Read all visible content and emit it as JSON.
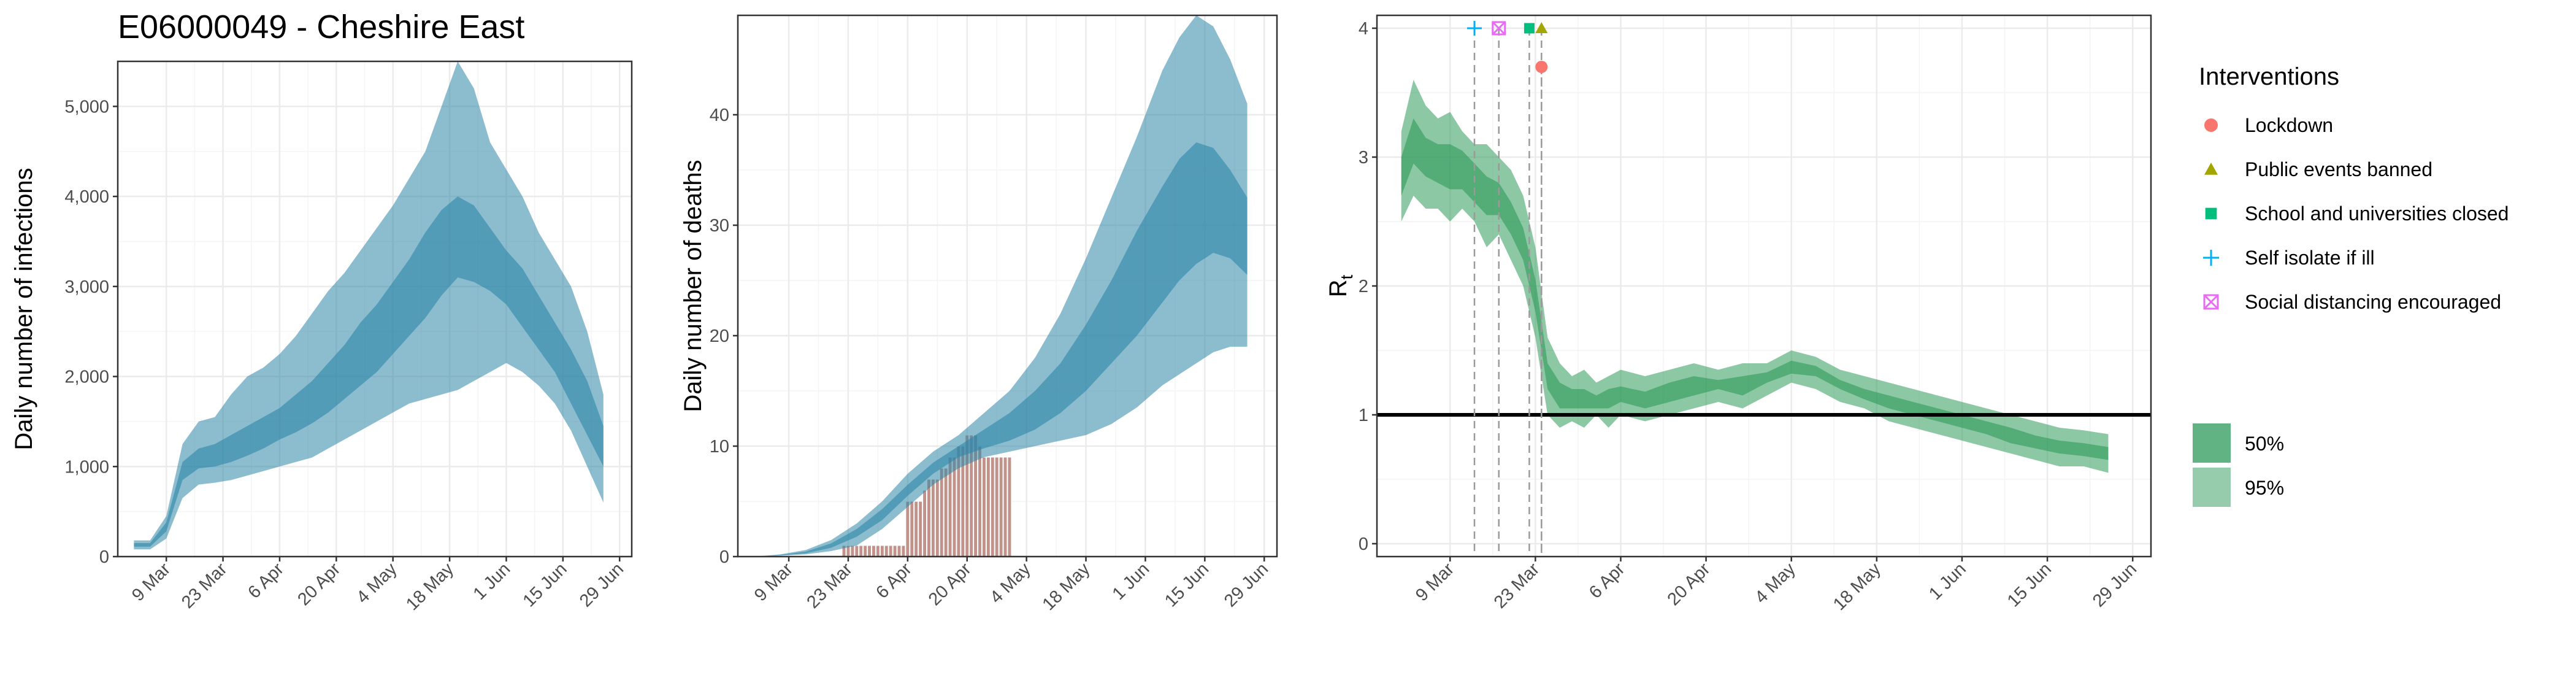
{
  "page": {
    "title": "E06000049 - Cheshire East"
  },
  "colors": {
    "infection_fill": "#2d86a8",
    "deaths_bar": "#c0928a",
    "rt_fill": "#2e9a5a",
    "lockdown": "#f8766d",
    "public_events": "#a3a500",
    "schools": "#00bf7d",
    "self_isolate": "#00b0f6",
    "social_distancing": "#e76bf3",
    "grid": "#ebebeb"
  },
  "chart_data": [
    {
      "id": "infections",
      "type": "area",
      "xlabel": "",
      "ylabel": "Daily number of infections",
      "x_tick_labels": [
        "9 Mar",
        "23 Mar",
        "6 Apr",
        "20 Apr",
        "4 May",
        "18 May",
        "1 Jun",
        "15 Jun",
        "29 Jun"
      ],
      "x_ticks_day": [
        8,
        22,
        36,
        50,
        64,
        78,
        92,
        106,
        120
      ],
      "xlim_day": [
        -4,
        123
      ],
      "y_tick_labels": [
        "0",
        "1,000",
        "2,000",
        "3,000",
        "4,000",
        "5,000"
      ],
      "y_ticks": [
        0,
        1000,
        2000,
        3000,
        4000,
        5000
      ],
      "ylim": [
        0,
        5500
      ],
      "series": [
        {
          "label": "95%",
          "x_day": [
            0,
            4,
            8,
            12,
            16,
            20,
            24,
            28,
            32,
            36,
            40,
            44,
            48,
            52,
            56,
            60,
            64,
            68,
            72,
            76,
            80,
            84,
            88,
            92,
            96,
            100,
            104,
            108,
            112,
            116
          ],
          "lower": [
            80,
            80,
            200,
            650,
            800,
            820,
            850,
            900,
            950,
            1000,
            1050,
            1100,
            1200,
            1300,
            1400,
            1500,
            1600,
            1700,
            1750,
            1800,
            1850,
            1950,
            2050,
            2150,
            2050,
            1900,
            1700,
            1400,
            1000,
            600
          ],
          "upper": [
            180,
            180,
            450,
            1250,
            1500,
            1550,
            1800,
            2000,
            2100,
            2250,
            2450,
            2700,
            2950,
            3150,
            3400,
            3650,
            3900,
            4200,
            4500,
            5000,
            5500,
            5200,
            4600,
            4300,
            4000,
            3600,
            3300,
            3000,
            2500,
            1800
          ]
        },
        {
          "label": "50%",
          "x_day": [
            0,
            4,
            8,
            12,
            16,
            20,
            24,
            28,
            32,
            36,
            40,
            44,
            48,
            52,
            56,
            60,
            64,
            68,
            72,
            76,
            80,
            84,
            88,
            92,
            96,
            100,
            104,
            108,
            112,
            116
          ],
          "lower": [
            110,
            110,
            280,
            850,
            980,
            1000,
            1050,
            1120,
            1200,
            1300,
            1380,
            1480,
            1600,
            1750,
            1900,
            2050,
            2250,
            2450,
            2650,
            2900,
            3100,
            3050,
            2950,
            2800,
            2550,
            2300,
            2050,
            1700,
            1350,
            1000
          ],
          "upper": [
            150,
            150,
            380,
            1050,
            1200,
            1250,
            1350,
            1450,
            1550,
            1650,
            1800,
            1950,
            2150,
            2350,
            2600,
            2800,
            3050,
            3300,
            3600,
            3850,
            4000,
            3900,
            3650,
            3400,
            3200,
            2900,
            2600,
            2300,
            1950,
            1450
          ]
        }
      ]
    },
    {
      "id": "deaths",
      "type": "bar",
      "xlabel": "",
      "ylabel": "Daily number of deaths",
      "x_tick_labels": [
        "9 Mar",
        "23 Mar",
        "6 Apr",
        "20 Apr",
        "4 May",
        "18 May",
        "1 Jun",
        "15 Jun",
        "29 Jun"
      ],
      "x_ticks_day": [
        8,
        22,
        36,
        50,
        64,
        78,
        92,
        106,
        120
      ],
      "xlim_day": [
        -4,
        123
      ],
      "y_tick_labels": [
        "0",
        "10",
        "20",
        "30",
        "40"
      ],
      "y_ticks": [
        0,
        10,
        20,
        30,
        40
      ],
      "ylim": [
        0,
        49
      ],
      "bars": {
        "x_day": [
          21,
          22,
          23,
          24,
          25,
          26,
          27,
          28,
          29,
          30,
          31,
          32,
          33,
          34,
          35,
          36,
          37,
          38,
          39,
          40,
          41,
          42,
          43,
          44,
          45,
          46,
          47,
          48,
          49,
          50,
          51,
          52,
          53,
          54,
          55,
          56,
          57,
          58,
          59,
          60
        ],
        "values": [
          1,
          1,
          1,
          1,
          1,
          1,
          1,
          1,
          1,
          1,
          1,
          1,
          1,
          1,
          1,
          5,
          5,
          5,
          5,
          6,
          7,
          7,
          7,
          8,
          8,
          9,
          9,
          10,
          10,
          11,
          11,
          11,
          10,
          9,
          9,
          9,
          9,
          9,
          9,
          9
        ]
      },
      "series": [
        {
          "label": "95%",
          "x_day": [
            0,
            6,
            12,
            18,
            24,
            30,
            36,
            42,
            48,
            54,
            60,
            66,
            72,
            78,
            84,
            90,
            96,
            100,
            104,
            108,
            112,
            116
          ],
          "lower": [
            0,
            0.1,
            0.2,
            0.5,
            1,
            2.5,
            4.5,
            6.5,
            8,
            9,
            9.5,
            10,
            10.5,
            11,
            12,
            13.5,
            15.5,
            16.5,
            17.5,
            18.5,
            19,
            19
          ],
          "upper": [
            0,
            0.2,
            0.6,
            1.5,
            3,
            5,
            7.5,
            9.5,
            11,
            13,
            15,
            18,
            22,
            27,
            32.5,
            38,
            44,
            47,
            49,
            48,
            45,
            41
          ]
        },
        {
          "label": "50%",
          "x_day": [
            0,
            6,
            12,
            18,
            24,
            30,
            36,
            42,
            48,
            54,
            60,
            66,
            72,
            78,
            84,
            90,
            96,
            100,
            104,
            108,
            112,
            116
          ],
          "lower": [
            0,
            0.1,
            0.3,
            0.8,
            1.8,
            3.3,
            5.5,
            7.5,
            9,
            9.8,
            10.5,
            11.5,
            13,
            15,
            17.5,
            20,
            23,
            25,
            26.5,
            27.5,
            27,
            25.5
          ],
          "upper": [
            0,
            0.15,
            0.45,
            1.2,
            2.5,
            4.3,
            6.5,
            8.5,
            10,
            11.5,
            13,
            15,
            17.5,
            21,
            25,
            29.5,
            33.5,
            36,
            37.5,
            37,
            35,
            32.5
          ]
        }
      ]
    },
    {
      "id": "rt",
      "type": "area",
      "xlabel": "",
      "ylabel": "Rt",
      "x_tick_labels": [
        "9 Mar",
        "23 Mar",
        "6 Apr",
        "20 Apr",
        "4 May",
        "18 May",
        "1 Jun",
        "15 Jun",
        "29 Jun"
      ],
      "x_ticks_day": [
        8,
        22,
        36,
        50,
        64,
        78,
        92,
        106,
        120
      ],
      "xlim_day": [
        -4,
        123
      ],
      "y_tick_labels": [
        "0",
        "1",
        "2",
        "3",
        "4"
      ],
      "y_ticks": [
        0,
        1,
        2,
        3,
        4
      ],
      "ylim": [
        -0.1,
        4.1
      ],
      "reference_line": 1,
      "series": [
        {
          "label": "95%",
          "x_day": [
            0,
            2,
            4,
            6,
            8,
            10,
            12,
            14,
            16,
            18,
            20,
            22,
            24,
            26,
            28,
            30,
            32,
            34,
            36,
            40,
            44,
            48,
            52,
            56,
            60,
            64,
            68,
            72,
            76,
            80,
            84,
            88,
            92,
            96,
            100,
            104,
            108,
            112,
            116
          ],
          "lower": [
            2.5,
            2.7,
            2.6,
            2.6,
            2.5,
            2.6,
            2.5,
            2.3,
            2.4,
            2.2,
            2.0,
            1.6,
            1.0,
            0.9,
            0.95,
            0.9,
            1.0,
            0.9,
            1.0,
            0.95,
            1.0,
            1.05,
            1.1,
            1.05,
            1.15,
            1.25,
            1.2,
            1.1,
            1.05,
            0.95,
            0.9,
            0.85,
            0.8,
            0.75,
            0.7,
            0.65,
            0.6,
            0.6,
            0.55
          ],
          "upper": [
            3.2,
            3.6,
            3.4,
            3.3,
            3.35,
            3.2,
            3.1,
            3.1,
            3.0,
            2.9,
            2.7,
            2.3,
            1.6,
            1.4,
            1.3,
            1.35,
            1.25,
            1.3,
            1.35,
            1.3,
            1.35,
            1.4,
            1.35,
            1.4,
            1.4,
            1.5,
            1.45,
            1.35,
            1.3,
            1.25,
            1.2,
            1.15,
            1.1,
            1.05,
            1.0,
            0.95,
            0.9,
            0.88,
            0.85
          ]
        },
        {
          "label": "50%",
          "x_day": [
            0,
            2,
            4,
            6,
            8,
            10,
            12,
            14,
            16,
            18,
            20,
            22,
            24,
            26,
            28,
            30,
            32,
            34,
            36,
            40,
            44,
            48,
            52,
            56,
            60,
            64,
            68,
            72,
            76,
            80,
            84,
            88,
            92,
            96,
            100,
            104,
            108,
            112,
            116
          ],
          "lower": [
            2.7,
            2.95,
            2.85,
            2.8,
            2.75,
            2.75,
            2.65,
            2.55,
            2.55,
            2.4,
            2.2,
            1.8,
            1.2,
            1.05,
            1.05,
            1.05,
            1.05,
            1.05,
            1.1,
            1.05,
            1.1,
            1.15,
            1.2,
            1.15,
            1.25,
            1.32,
            1.3,
            1.2,
            1.12,
            1.05,
            1.0,
            0.95,
            0.9,
            0.85,
            0.78,
            0.74,
            0.7,
            0.68,
            0.65
          ],
          "upper": [
            3.0,
            3.3,
            3.15,
            3.1,
            3.1,
            3.05,
            2.95,
            2.85,
            2.8,
            2.65,
            2.45,
            2.05,
            1.4,
            1.25,
            1.2,
            1.2,
            1.15,
            1.2,
            1.22,
            1.18,
            1.25,
            1.3,
            1.27,
            1.3,
            1.33,
            1.42,
            1.38,
            1.27,
            1.2,
            1.15,
            1.1,
            1.05,
            1.0,
            0.95,
            0.9,
            0.84,
            0.8,
            0.78,
            0.75
          ]
        }
      ],
      "interventions": [
        {
          "name": "Self isolate if ill",
          "day": 12,
          "marker": "plus",
          "y": 4.0
        },
        {
          "name": "Social distancing encouraged",
          "day": 16,
          "marker": "boxcross",
          "y": 4.0
        },
        {
          "name": "School and universities closed",
          "day": 21,
          "marker": "square",
          "y": 4.0
        },
        {
          "name": "Public events banned",
          "day": 23,
          "marker": "triangle",
          "y": 4.0
        },
        {
          "name": "Lockdown",
          "day": 23,
          "marker": "circle",
          "y": 3.7
        }
      ]
    }
  ],
  "legend": {
    "title": "Interventions",
    "items": [
      {
        "label": "Lockdown",
        "marker": "circle"
      },
      {
        "label": "Public events banned",
        "marker": "triangle"
      },
      {
        "label": "School and universities closed",
        "marker": "square"
      },
      {
        "label": "Self isolate if ill",
        "marker": "plus"
      },
      {
        "label": "Social distancing encouraged",
        "marker": "boxcross"
      }
    ],
    "bands": [
      {
        "label": "50%"
      },
      {
        "label": "95%"
      }
    ]
  }
}
